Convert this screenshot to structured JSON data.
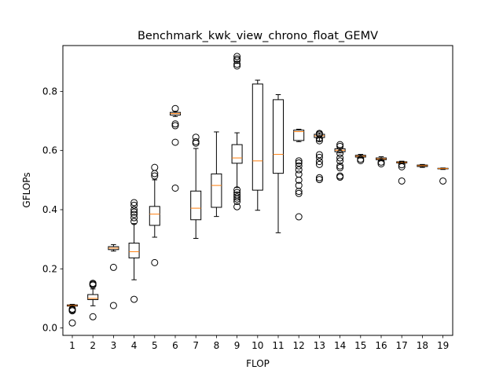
{
  "chart_data": {
    "type": "box",
    "title": "Benchmark_kwk_view_chrono_float_GEMV",
    "xlabel": "FLOP",
    "ylabel": "GFLOPs",
    "ylim": [
      -0.025,
      0.955
    ],
    "yticks": [
      0.0,
      0.2,
      0.4,
      0.6,
      0.8
    ],
    "ytick_labels": [
      "0.0",
      "0.2",
      "0.4",
      "0.6",
      "0.8"
    ],
    "categories": [
      "1",
      "2",
      "3",
      "4",
      "5",
      "6",
      "7",
      "8",
      "9",
      "10",
      "11",
      "12",
      "13",
      "14",
      "15",
      "16",
      "17",
      "18",
      "19"
    ],
    "grid": false,
    "colors": {
      "box": "#000000",
      "median": "#ff7f0e",
      "flier": "#000000"
    },
    "boxes": [
      {
        "x": "1",
        "whislo": 0.072,
        "q1": 0.074,
        "med": 0.076,
        "q3": 0.078,
        "whishi": 0.08,
        "fliers": [
          0.064,
          0.061,
          0.058,
          0.017
        ]
      },
      {
        "x": "2",
        "whislo": 0.075,
        "q1": 0.096,
        "med": 0.1,
        "q3": 0.113,
        "whishi": 0.132,
        "fliers": [
          0.151,
          0.148,
          0.145,
          0.038
        ]
      },
      {
        "x": "3",
        "whislo": 0.26,
        "q1": 0.265,
        "med": 0.27,
        "q3": 0.275,
        "whishi": 0.282,
        "fliers": [
          0.205,
          0.076
        ]
      },
      {
        "x": "4",
        "whislo": 0.163,
        "q1": 0.237,
        "med": 0.258,
        "q3": 0.287,
        "whishi": 0.353,
        "fliers": [
          0.424,
          0.415,
          0.4,
          0.392,
          0.384,
          0.373,
          0.36,
          0.097
        ]
      },
      {
        "x": "5",
        "whislo": 0.307,
        "q1": 0.347,
        "med": 0.385,
        "q3": 0.411,
        "whishi": 0.501,
        "fliers": [
          0.543,
          0.522,
          0.514,
          0.221
        ]
      },
      {
        "x": "6",
        "whislo": 0.715,
        "q1": 0.72,
        "med": 0.725,
        "q3": 0.729,
        "whishi": 0.733,
        "fliers": [
          0.742,
          0.69,
          0.684,
          0.628,
          0.473
        ]
      },
      {
        "x": "7",
        "whislo": 0.303,
        "q1": 0.366,
        "med": 0.405,
        "q3": 0.463,
        "whishi": 0.607,
        "fliers": [
          0.645,
          0.63,
          0.625
        ]
      },
      {
        "x": "8",
        "whislo": 0.377,
        "q1": 0.408,
        "med": 0.482,
        "q3": 0.521,
        "whishi": 0.663,
        "fliers": []
      },
      {
        "x": "9",
        "whislo": 0.475,
        "q1": 0.557,
        "med": 0.575,
        "q3": 0.62,
        "whishi": 0.66,
        "fliers": [
          0.918,
          0.91,
          0.905,
          0.892,
          0.886,
          0.467,
          0.458,
          0.45,
          0.443,
          0.436,
          0.428,
          0.41
        ]
      },
      {
        "x": "10",
        "whislo": 0.398,
        "q1": 0.466,
        "med": 0.565,
        "q3": 0.825,
        "whishi": 0.838,
        "fliers": []
      },
      {
        "x": "11",
        "whislo": 0.322,
        "q1": 0.523,
        "med": 0.587,
        "q3": 0.772,
        "whishi": 0.789,
        "fliers": []
      },
      {
        "x": "12",
        "whislo": 0.63,
        "q1": 0.634,
        "med": 0.664,
        "q3": 0.669,
        "whishi": 0.672,
        "fliers": [
          0.565,
          0.558,
          0.548,
          0.535,
          0.52,
          0.5,
          0.482,
          0.462,
          0.455,
          0.376
        ]
      },
      {
        "x": "13",
        "whislo": 0.633,
        "q1": 0.644,
        "med": 0.65,
        "q3": 0.655,
        "whishi": 0.66,
        "fliers": [
          0.658,
          0.655,
          0.64,
          0.633,
          0.586,
          0.577,
          0.563,
          0.553,
          0.508,
          0.502
        ]
      },
      {
        "x": "14",
        "whislo": 0.592,
        "q1": 0.596,
        "med": 0.601,
        "q3": 0.606,
        "whishi": 0.61,
        "fliers": [
          0.62,
          0.614,
          0.59,
          0.575,
          0.565,
          0.548,
          0.542,
          0.514,
          0.51
        ]
      },
      {
        "x": "15",
        "whislo": 0.575,
        "q1": 0.578,
        "med": 0.581,
        "q3": 0.584,
        "whishi": 0.587,
        "fliers": [
          0.571,
          0.566
        ]
      },
      {
        "x": "16",
        "whislo": 0.566,
        "q1": 0.569,
        "med": 0.572,
        "q3": 0.575,
        "whishi": 0.579,
        "fliers": [
          0.561,
          0.555
        ]
      },
      {
        "x": "17",
        "whislo": 0.556,
        "q1": 0.558,
        "med": 0.56,
        "q3": 0.562,
        "whishi": 0.564,
        "fliers": [
          0.552,
          0.545,
          0.497
        ]
      },
      {
        "x": "18",
        "whislo": 0.543,
        "q1": 0.546,
        "med": 0.549,
        "q3": 0.551,
        "whishi": 0.553,
        "fliers": []
      },
      {
        "x": "19",
        "whislo": 0.536,
        "q1": 0.538,
        "med": 0.539,
        "q3": 0.54,
        "whishi": 0.541,
        "fliers": [
          0.497
        ]
      }
    ]
  }
}
